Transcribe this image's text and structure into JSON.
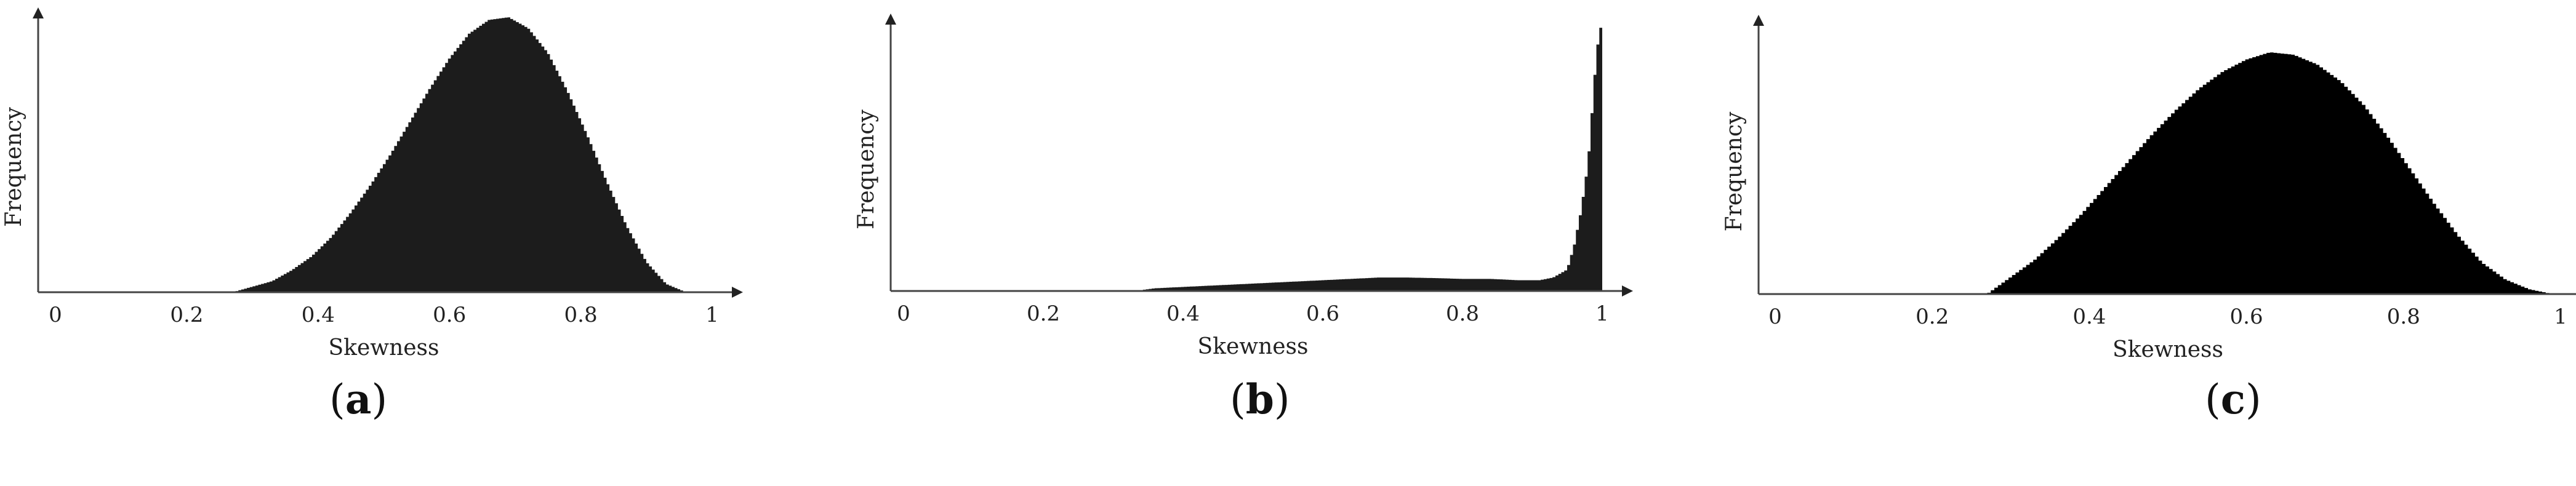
{
  "chart_data": [
    {
      "type": "area",
      "panel_label": "a",
      "xlabel": "Skewness",
      "ylabel": "Frequency",
      "xlim": [
        0,
        1
      ],
      "xticks": [
        "0",
        "0.2",
        "0.4",
        "0.6",
        "0.8",
        "1"
      ],
      "ylim": [
        0,
        1
      ],
      "y_ticks_shown": false,
      "fill_color": "#1c1c1c",
      "x": [
        0.27,
        0.3,
        0.33,
        0.36,
        0.39,
        0.42,
        0.45,
        0.48,
        0.51,
        0.54,
        0.57,
        0.6,
        0.63,
        0.66,
        0.69,
        0.72,
        0.75,
        0.78,
        0.81,
        0.84,
        0.87,
        0.9,
        0.93,
        0.96
      ],
      "values": [
        0.0,
        0.02,
        0.04,
        0.08,
        0.13,
        0.2,
        0.29,
        0.39,
        0.5,
        0.62,
        0.74,
        0.85,
        0.94,
        0.99,
        1.0,
        0.96,
        0.87,
        0.73,
        0.57,
        0.4,
        0.24,
        0.11,
        0.03,
        0.0
      ]
    },
    {
      "type": "area",
      "panel_label": "b",
      "xlabel": "Skewness",
      "ylabel": "Frequency",
      "xlim": [
        0,
        1
      ],
      "xticks": [
        "0",
        "0.2",
        "0.4",
        "0.6",
        "0.8",
        "1"
      ],
      "ylim": [
        0,
        1
      ],
      "y_ticks_shown": false,
      "fill_color": "#1c1c1c",
      "x": [
        0.33,
        0.36,
        0.4,
        0.44,
        0.48,
        0.52,
        0.56,
        0.6,
        0.64,
        0.68,
        0.72,
        0.76,
        0.8,
        0.84,
        0.88,
        0.91,
        0.93,
        0.95,
        0.96,
        0.97,
        0.98,
        0.985,
        0.99,
        0.995,
        1.0
      ],
      "values": [
        0.0,
        0.01,
        0.015,
        0.02,
        0.025,
        0.03,
        0.035,
        0.04,
        0.045,
        0.05,
        0.05,
        0.048,
        0.045,
        0.045,
        0.04,
        0.04,
        0.05,
        0.08,
        0.17,
        0.3,
        0.48,
        0.65,
        0.82,
        0.95,
        1.0
      ]
    },
    {
      "type": "area",
      "panel_label": "c",
      "xlabel": "Skewness",
      "ylabel": "Frequency",
      "xlim": [
        0,
        1
      ],
      "xticks": [
        "0",
        "0.2",
        "0.4",
        "0.6",
        "0.8",
        "1"
      ],
      "ylim": [
        0,
        1
      ],
      "y_ticks_shown": false,
      "fill_color": "#000000",
      "x": [
        0.27,
        0.3,
        0.33,
        0.36,
        0.39,
        0.42,
        0.45,
        0.48,
        0.51,
        0.54,
        0.57,
        0.6,
        0.63,
        0.66,
        0.69,
        0.72,
        0.75,
        0.78,
        0.81,
        0.84,
        0.87,
        0.9,
        0.93,
        0.96,
        0.99
      ],
      "values": [
        0.0,
        0.07,
        0.14,
        0.23,
        0.33,
        0.44,
        0.55,
        0.66,
        0.76,
        0.85,
        0.92,
        0.97,
        1.0,
        0.99,
        0.95,
        0.88,
        0.78,
        0.65,
        0.51,
        0.37,
        0.24,
        0.13,
        0.06,
        0.02,
        0.0
      ]
    }
  ]
}
